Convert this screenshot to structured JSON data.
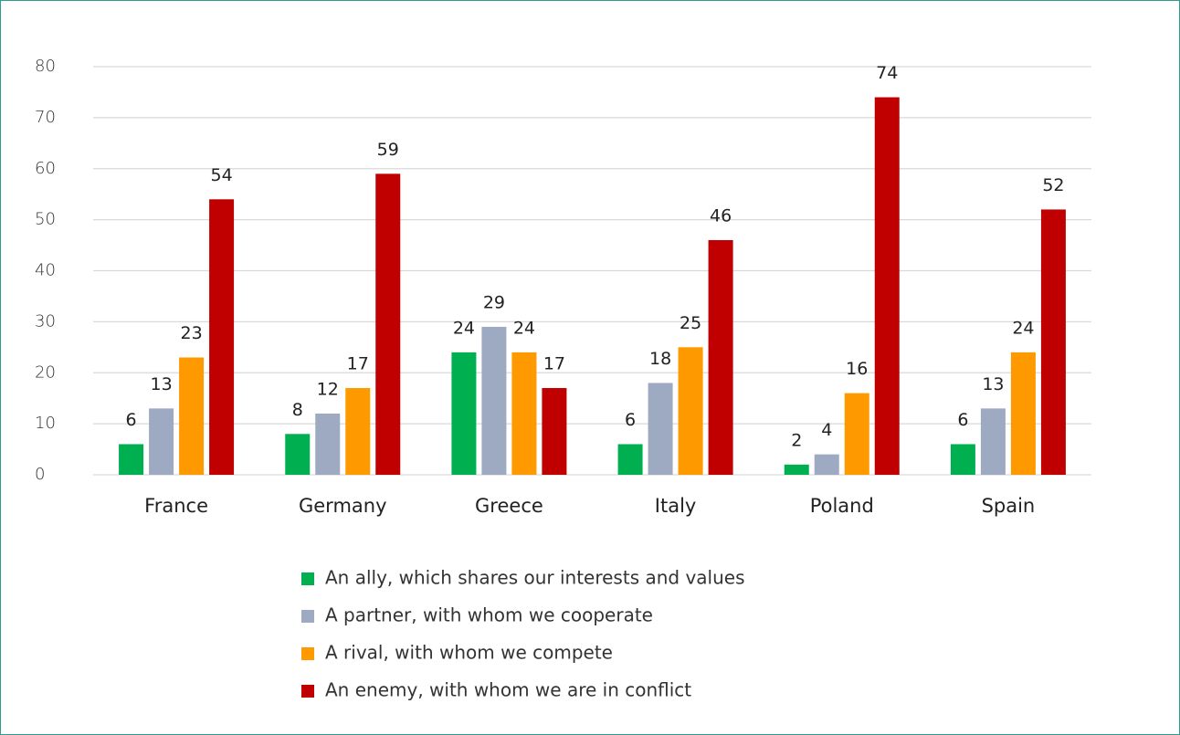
{
  "chart_data": {
    "type": "bar",
    "categories": [
      "France",
      "Germany",
      "Greece",
      "Italy",
      "Poland",
      "Spain"
    ],
    "series": [
      {
        "name": "An ally, which shares our interests and values",
        "color": "#00b050",
        "values": [
          6,
          8,
          24,
          6,
          2,
          6
        ]
      },
      {
        "name": "A partner, with whom we cooperate",
        "color": "#9eaac1",
        "values": [
          13,
          12,
          29,
          18,
          4,
          13
        ]
      },
      {
        "name": "A rival, with whom we compete",
        "color": "#ff9900",
        "values": [
          23,
          17,
          24,
          25,
          16,
          24
        ]
      },
      {
        "name": "An enemy, with whom we are in conflict",
        "color": "#c00000",
        "values": [
          54,
          59,
          17,
          46,
          74,
          52
        ]
      }
    ],
    "ylim": [
      0,
      80
    ],
    "yticks": [
      0,
      10,
      20,
      30,
      40,
      50,
      60,
      70,
      80
    ],
    "grid": true,
    "legend": "bottom"
  }
}
